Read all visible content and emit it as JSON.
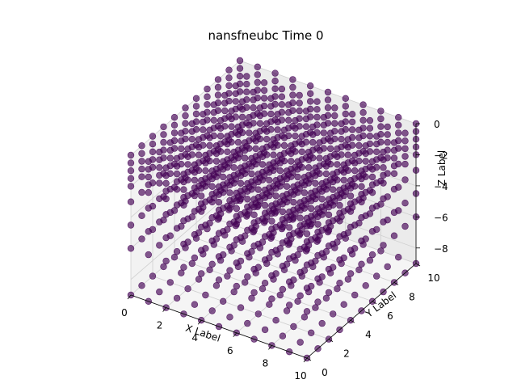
{
  "chart_data": {
    "type": "scatter",
    "projection": "3d",
    "title": "nansfneubc Time 0",
    "xlabel": "X Label",
    "ylabel": "Y Label",
    "zlabel": "Z Label",
    "xlim": [
      0,
      10
    ],
    "ylim": [
      0,
      10
    ],
    "zlim": [
      -9,
      0
    ],
    "x_ticks": [
      "0",
      "2",
      "4",
      "6",
      "8",
      "10"
    ],
    "y_ticks": [
      "0",
      "2",
      "4",
      "6",
      "8",
      "10"
    ],
    "z_ticks": [
      "0",
      "−2",
      "−4",
      "−6",
      "−8"
    ],
    "grid": true,
    "points": {
      "x_values": [
        0,
        1,
        2,
        3,
        4,
        5,
        6,
        7,
        8,
        9,
        10
      ],
      "y_values": [
        0,
        1,
        2,
        3,
        4,
        5,
        6,
        7,
        8,
        9,
        10
      ],
      "z_layers": [
        0,
        -0.5,
        -1,
        -1.5,
        -2,
        -3,
        -4.5,
        -6,
        -9
      ]
    },
    "marker_color": "#440154",
    "marker_alpha": 0.65
  }
}
